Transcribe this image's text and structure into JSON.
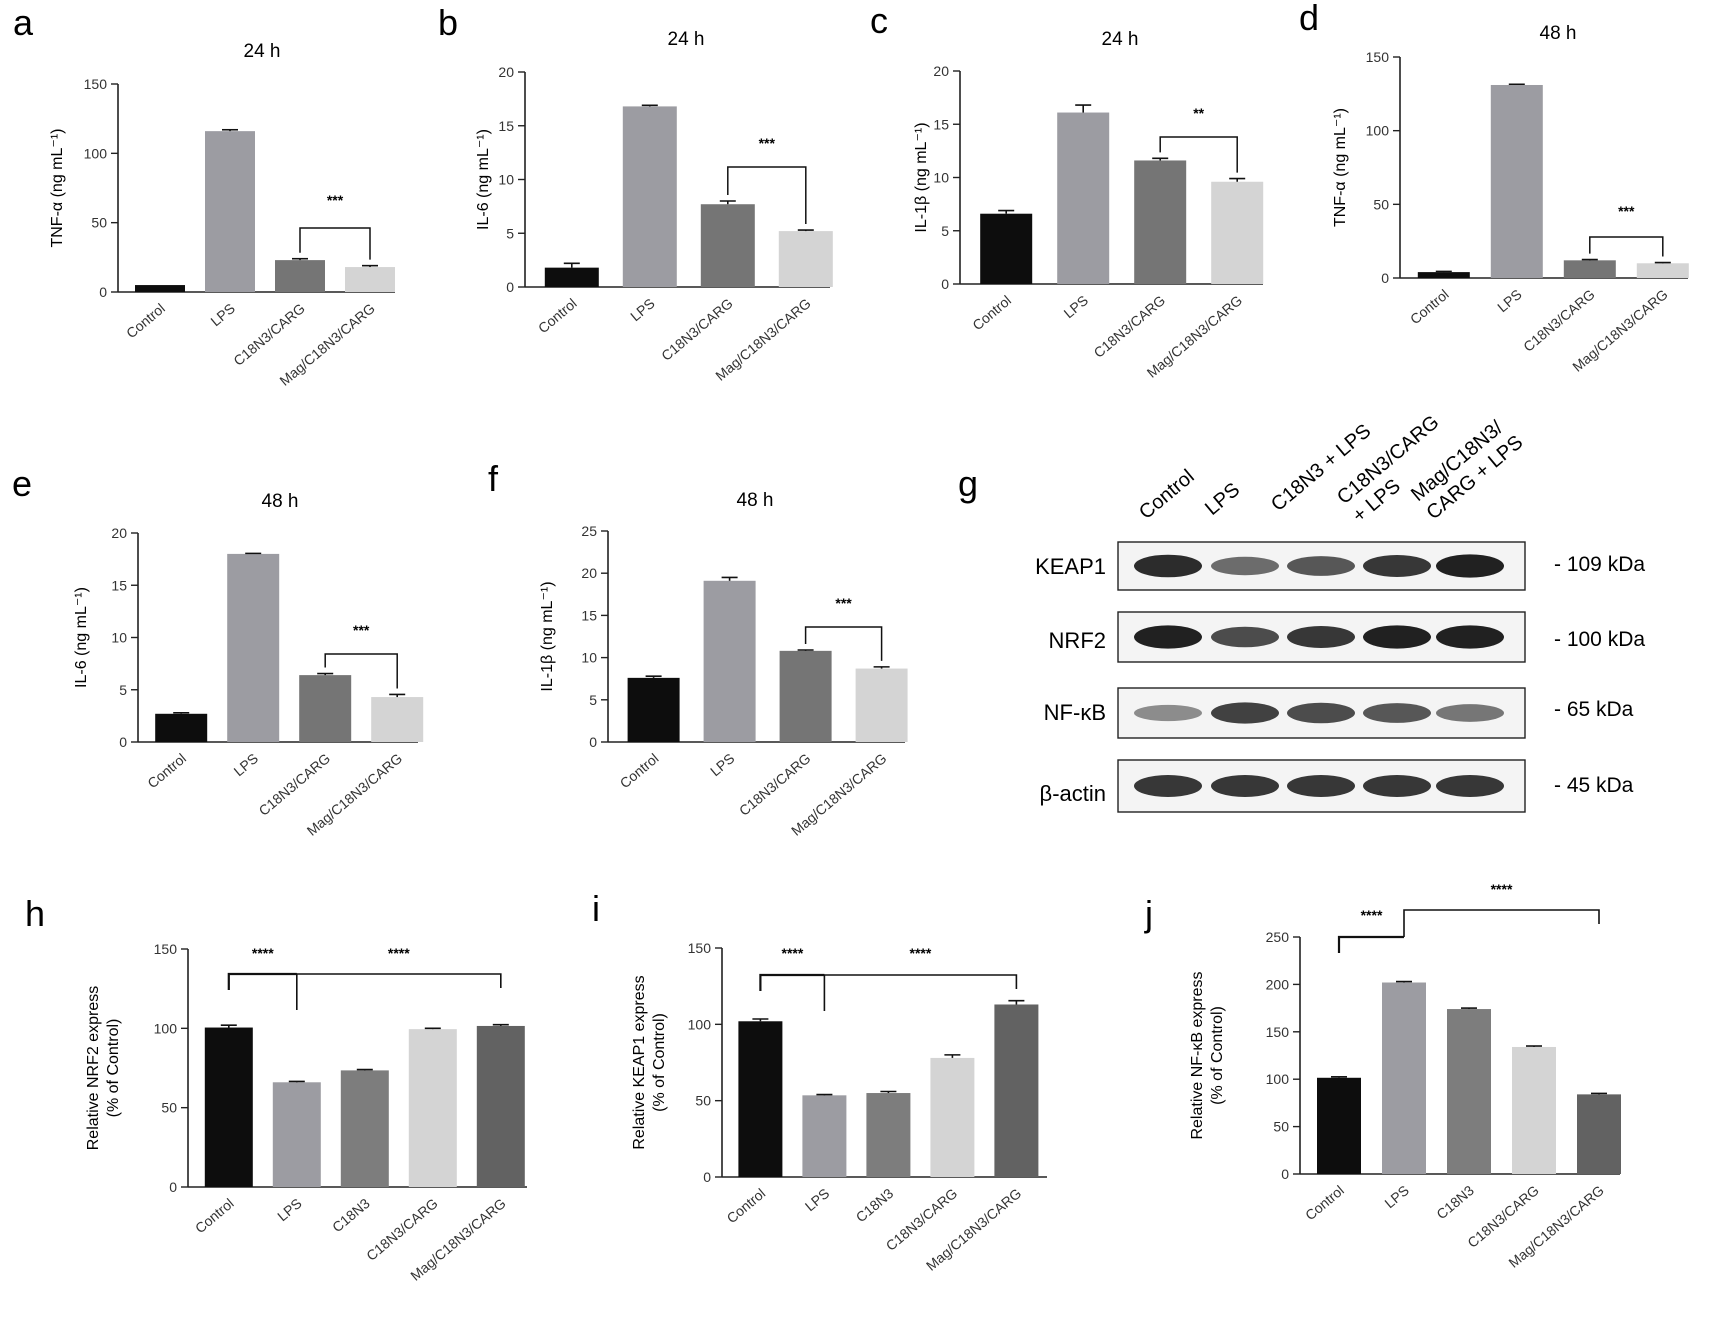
{
  "chart_data": [
    {
      "id": "a",
      "type": "bar",
      "panel_label": "a",
      "title": "24 h",
      "ylabel": "TNF-α (ng mL⁻¹)",
      "ylim": [
        0,
        150
      ],
      "yticks": [
        0,
        50,
        100,
        150
      ],
      "categories": [
        "Control",
        "LPS",
        "C18N3/CARG",
        "Mag/C18N3/CARG"
      ],
      "values": [
        5,
        116,
        23,
        18
      ],
      "errors": [
        0,
        1,
        1,
        1
      ],
      "colors": [
        "#0d0d0d",
        "#9c9ca2",
        "#757575",
        "#d4d4d4"
      ],
      "annotations": [
        {
          "from": 2,
          "to": 3,
          "text": "***"
        }
      ]
    },
    {
      "id": "b",
      "type": "bar",
      "panel_label": "b",
      "title": "24 h",
      "ylabel": "IL-6 (ng mL⁻¹)",
      "ylim": [
        0,
        20
      ],
      "yticks": [
        0,
        5,
        10,
        15,
        20
      ],
      "categories": [
        "Control",
        "LPS",
        "C18N3/CARG",
        "Mag/C18N3/CARG"
      ],
      "values": [
        1.8,
        16.8,
        7.7,
        5.2
      ],
      "errors": [
        0.4,
        0.1,
        0.3,
        0.1
      ],
      "colors": [
        "#0d0d0d",
        "#9c9ca2",
        "#757575",
        "#d4d4d4"
      ],
      "annotations": [
        {
          "from": 2,
          "to": 3,
          "text": "***"
        }
      ]
    },
    {
      "id": "c",
      "type": "bar",
      "panel_label": "c",
      "title": "24 h",
      "ylabel": "IL-1β (ng mL⁻¹)",
      "ylim": [
        0,
        20
      ],
      "yticks": [
        0,
        5,
        10,
        15,
        20
      ],
      "categories": [
        "Control",
        "LPS",
        "C18N3/CARG",
        "Mag/C18N3/CARG"
      ],
      "values": [
        6.6,
        16.1,
        11.6,
        9.6
      ],
      "errors": [
        0.3,
        0.7,
        0.2,
        0.3
      ],
      "colors": [
        "#0d0d0d",
        "#9c9ca2",
        "#757575",
        "#d4d4d4"
      ],
      "annotations": [
        {
          "from": 2,
          "to": 3,
          "text": "**"
        }
      ]
    },
    {
      "id": "d",
      "type": "bar",
      "panel_label": "d",
      "title": "48 h",
      "ylabel": "TNF-α (ng mL⁻¹)",
      "ylim": [
        0,
        150
      ],
      "yticks": [
        0,
        50,
        100,
        150
      ],
      "categories": [
        "Control",
        "LPS",
        "C18N3/CARG",
        "Mag/C18N3/CARG"
      ],
      "values": [
        4,
        131,
        12,
        10
      ],
      "errors": [
        0.5,
        0.5,
        0.5,
        0.5
      ],
      "colors": [
        "#0d0d0d",
        "#9c9ca2",
        "#757575",
        "#d4d4d4"
      ],
      "annotations": [
        {
          "from": 2,
          "to": 3,
          "text": "***"
        }
      ]
    },
    {
      "id": "e",
      "type": "bar",
      "panel_label": "e",
      "title": "48 h",
      "ylabel": "IL-6 (ng mL⁻¹)",
      "ylim": [
        0,
        20
      ],
      "yticks": [
        0,
        5,
        10,
        15,
        20
      ],
      "categories": [
        "Control",
        "LPS",
        "C18N3/CARG",
        "Mag/C18N3/CARG"
      ],
      "values": [
        2.7,
        18,
        6.4,
        4.3
      ],
      "errors": [
        0.1,
        0.05,
        0.15,
        0.25
      ],
      "colors": [
        "#0d0d0d",
        "#9c9ca2",
        "#757575",
        "#d4d4d4"
      ],
      "annotations": [
        {
          "from": 2,
          "to": 3,
          "text": "***"
        }
      ]
    },
    {
      "id": "f",
      "type": "bar",
      "panel_label": "f",
      "title": "48 h",
      "ylabel": "IL-1β (ng mL⁻¹)",
      "ylim": [
        0,
        25
      ],
      "yticks": [
        0,
        5,
        10,
        15,
        20,
        25
      ],
      "categories": [
        "Control",
        "LPS",
        "C18N3/CARG",
        "Mag/C18N3/CARG"
      ],
      "values": [
        7.6,
        19.1,
        10.8,
        8.7
      ],
      "errors": [
        0.2,
        0.4,
        0.1,
        0.2
      ],
      "colors": [
        "#0d0d0d",
        "#9c9ca2",
        "#757575",
        "#d4d4d4"
      ],
      "annotations": [
        {
          "from": 2,
          "to": 3,
          "text": "***"
        }
      ]
    },
    {
      "id": "h",
      "type": "bar",
      "panel_label": "h",
      "title": "",
      "ylabel": "Relative NRF2 express\n(% of Control)",
      "ylim": [
        0,
        150
      ],
      "yticks": [
        0,
        50,
        100,
        150
      ],
      "categories": [
        "Control",
        "LPS",
        "C18N3",
        "C18N3/CARG",
        "Mag/C18N3/CARG"
      ],
      "values": [
        100.5,
        66,
        73.5,
        99.5,
        101.5
      ],
      "errors": [
        1.5,
        0.5,
        0.5,
        0.5,
        0.8
      ],
      "colors": [
        "#0d0d0d",
        "#9c9ca2",
        "#7d7d7d",
        "#d4d4d4",
        "#626262"
      ],
      "annotations": [
        {
          "from": 0,
          "to": 1,
          "text": "****"
        },
        {
          "from": 1,
          "to": 4,
          "text": "****"
        }
      ]
    },
    {
      "id": "i",
      "type": "bar",
      "panel_label": "i",
      "title": "",
      "ylabel": "Relative KEAP1 express\n(% of Control)",
      "ylim": [
        0,
        150
      ],
      "yticks": [
        0,
        50,
        100,
        150
      ],
      "categories": [
        "Control",
        "LPS",
        "C18N3",
        "C18N3/CARG",
        "Mag/C18N3/CARG"
      ],
      "values": [
        102,
        53.5,
        55,
        78,
        113
      ],
      "errors": [
        1.5,
        0.5,
        1,
        2,
        2.5
      ],
      "colors": [
        "#0d0d0d",
        "#9c9ca2",
        "#7d7d7d",
        "#d4d4d4",
        "#626262"
      ],
      "annotations": [
        {
          "from": 0,
          "to": 1,
          "text": "****"
        },
        {
          "from": 1,
          "to": 4,
          "text": "****"
        }
      ]
    },
    {
      "id": "j",
      "type": "bar",
      "panel_label": "j",
      "title": "",
      "ylabel": "Relative NF-κB express\n(% of Control)",
      "ylim": [
        0,
        250
      ],
      "yticks": [
        0,
        50,
        100,
        150,
        200,
        250
      ],
      "categories": [
        "Control",
        "LPS",
        "C18N3",
        "C18N3/CARG",
        "Mag/C18N3/CARG"
      ],
      "values": [
        101.5,
        202,
        174,
        134,
        84
      ],
      "errors": [
        1,
        1,
        1,
        1,
        1
      ],
      "colors": [
        "#0d0d0d",
        "#9c9ca2",
        "#7d7d7d",
        "#d4d4d4",
        "#626262"
      ],
      "annotations": [
        {
          "from": 0,
          "to": 1,
          "text": "****"
        },
        {
          "from": 1,
          "to": 4,
          "text": "****"
        }
      ]
    }
  ],
  "western_blot": {
    "panel_label": "g",
    "lanes": [
      "Control",
      "LPS",
      "C18N3 + LPS",
      "C18N3/CARG\n+ LPS",
      "Mag/C18N3/\nCARG + LPS"
    ],
    "proteins": [
      {
        "name": "KEAP1",
        "size": "- 109 kDa",
        "intensity": [
          0.9,
          0.6,
          0.7,
          0.85,
          0.95
        ]
      },
      {
        "name": "NRF2",
        "size": "- 100 kDa",
        "intensity": [
          0.95,
          0.75,
          0.85,
          0.95,
          0.95
        ]
      },
      {
        "name": "NF-κB",
        "size": "- 65 kDa",
        "intensity": [
          0.45,
          0.8,
          0.75,
          0.7,
          0.55
        ]
      },
      {
        "name": "β-actin",
        "size": "- 45 kDa",
        "intensity": [
          0.85,
          0.85,
          0.85,
          0.85,
          0.85
        ]
      }
    ]
  }
}
